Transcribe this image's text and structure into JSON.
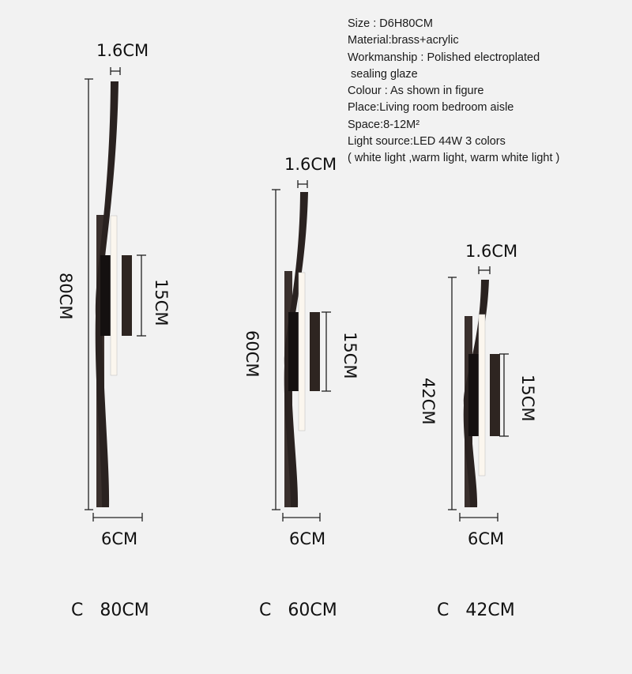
{
  "specs": [
    "Size : D6H80CM",
    "Material:brass+acrylic",
    "Workmanship : Polished electroplated",
    " sealing glaze",
    "Colour : As shown in figure",
    "Place:Living room bedroom aisle",
    "Space:8-12M²",
    "Light source:LED 44W 3 colors",
    "( white light ,warm light, warm white light )"
  ],
  "lamps": [
    {
      "height_label": "80CM",
      "thickness_label": "1.6CM",
      "plate_label": "15CM",
      "width_label": "6CM",
      "caption_prefix": "C",
      "caption_size": "80CM"
    },
    {
      "height_label": "60CM",
      "thickness_label": "1.6CM",
      "plate_label": "15CM",
      "width_label": "6CM",
      "caption_prefix": "C",
      "caption_size": "60CM"
    },
    {
      "height_label": "42CM",
      "thickness_label": "1.6CM",
      "plate_label": "15CM",
      "width_label": "6CM",
      "caption_prefix": "C",
      "caption_size": "42CM"
    }
  ],
  "colors": {
    "background": "#f2f2f2",
    "lamp_body": "#2a2220",
    "light": "#fbf6ee",
    "dimension_line": "#222222"
  }
}
